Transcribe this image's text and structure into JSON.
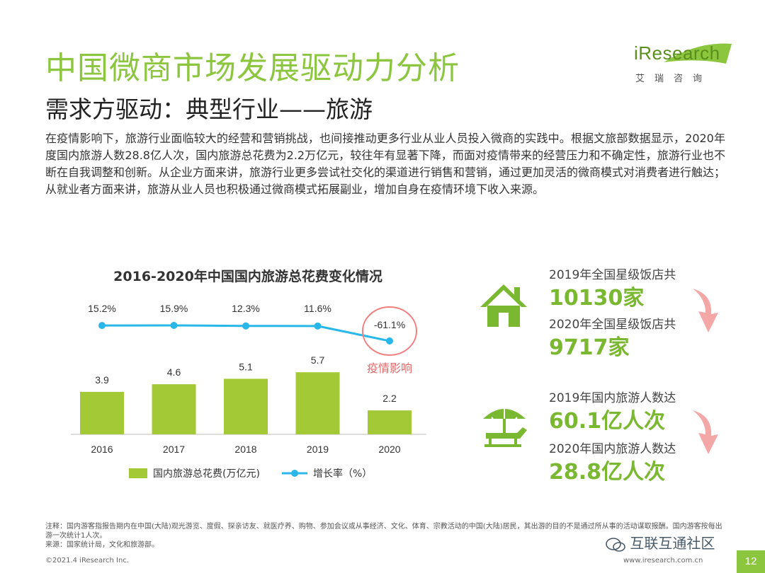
{
  "header": {
    "title": "中国微商市场发展驱动力分析",
    "subtitle": "需求方驱动：典型行业——旅游"
  },
  "logo": {
    "brand": "iResearch",
    "brand_cn": "艾瑞咨询"
  },
  "body_text": "在疫情影响下，旅游行业面临较大的经营和营销挑战，也间接推动更多行业从业人员投入微商的实践中。根据文旅部数据显示，2020年度国内旅游人数28.8亿人次，国内旅游总花费为2.2万亿元，较往年有显著下降，而面对疫情带来的经营压力和不确定性，旅游行业也不断在自我调整和创新。从企业方面来讲，旅游行业更多尝试社交化的渠道进行销售和营销，通过更加灵活的微商模式对消费者进行触达；从就业者方面来讲，旅游从业人员也积极通过微商模式拓展副业，增加自身在疫情环境下收入来源。",
  "chart_data": {
    "type": "bar",
    "title": "2016-2020年中国国内旅游总花费变化情况",
    "categories": [
      "2016",
      "2017",
      "2018",
      "2019",
      "2020"
    ],
    "series": [
      {
        "name": "国内旅游总花费(万亿元)",
        "type": "bar",
        "values": [
          3.9,
          4.6,
          5.1,
          5.7,
          2.2
        ],
        "labels": [
          "3.9",
          "4.6",
          "5.1",
          "5.7",
          "2.2"
        ]
      },
      {
        "name": "增长率（%）",
        "type": "line",
        "values": [
          15.2,
          15.9,
          12.3,
          11.6,
          -61.1
        ],
        "labels": [
          "15.2%",
          "15.9%",
          "12.3%",
          "11.6%",
          "-61.1%"
        ]
      }
    ],
    "annotation": "疫情影响",
    "colors": {
      "bar": "#a3c936",
      "line": "#29b6e8",
      "annotation": "#f08080"
    }
  },
  "stats": {
    "hotels_2019_label": "2019年全国星级饭店共",
    "hotels_2019_value": "10130家",
    "hotels_2020_label": "2020年全国星级饭店共",
    "hotels_2020_value": "9717家",
    "tourists_2019_label": "2019年国内旅游人数达",
    "tourists_2019_value": "60.1亿人次",
    "tourists_2020_label": "2020年国内旅游人数达",
    "tourists_2020_value": "28.8亿人次"
  },
  "footer": {
    "note1": "注释：国内游客指报告期内在中国(大陆)观光游览、度假、探亲访友、就医疗养、购物、参加会议或从事经济、文化、体育、宗教活动的中国(大陆)居民，其出游的目的不是通过所从事的活动谋取报酬。国内游客按每出游一次统计1人次。",
    "source": "来源：国家统计局，文化和旅游部。",
    "copyright": "©2021.4 iResearch Inc.",
    "website": "www.iresearch.com.cn",
    "page_number": "12",
    "watermark": "互联互通社区"
  },
  "colors": {
    "accent": "#8cc63f",
    "stat_green": "#7ab831",
    "arrow_pink": "#f4a7a7",
    "icon_green": "#7ab831"
  }
}
